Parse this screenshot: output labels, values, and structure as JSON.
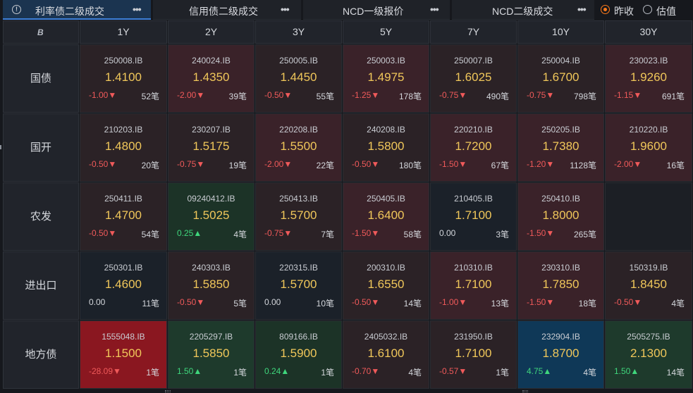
{
  "tabs": [
    {
      "label": "利率债二级成交",
      "active": true,
      "has_info": true
    },
    {
      "label": "信用债二级成交",
      "active": false
    },
    {
      "label": "NCD一级报价",
      "active": false
    },
    {
      "label": "NCD二级成交",
      "active": false
    }
  ],
  "more_glyph": "•••",
  "info_glyph": "!",
  "radio": {
    "options": [
      "昨收",
      "估值"
    ],
    "selected": "昨收"
  },
  "corner_icon": "B",
  "columns": [
    "1Y",
    "2Y",
    "3Y",
    "5Y",
    "7Y",
    "10Y",
    "30Y"
  ],
  "rows": [
    {
      "label": "国债",
      "cells": [
        {
          "code": "250008.IB",
          "price": "1.4100",
          "change": "-1.00▼",
          "dir": "down",
          "count": "52笔",
          "tone": "r1"
        },
        {
          "code": "240024.IB",
          "price": "1.4350",
          "change": "-2.00▼",
          "dir": "down",
          "count": "39笔",
          "tone": "r2"
        },
        {
          "code": "250005.IB",
          "price": "1.4450",
          "change": "-0.50▼",
          "dir": "down",
          "count": "55笔",
          "tone": "r1"
        },
        {
          "code": "250003.IB",
          "price": "1.4975",
          "change": "-1.25▼",
          "dir": "down",
          "count": "178笔",
          "tone": "r2"
        },
        {
          "code": "250007.IB",
          "price": "1.6025",
          "change": "-0.75▼",
          "dir": "down",
          "count": "490笔",
          "tone": "r1"
        },
        {
          "code": "250004.IB",
          "price": "1.6700",
          "change": "-0.75▼",
          "dir": "down",
          "count": "798笔",
          "tone": "r1"
        },
        {
          "code": "230023.IB",
          "price": "1.9260",
          "change": "-1.15▼",
          "dir": "down",
          "count": "691笔",
          "tone": "r2"
        }
      ]
    },
    {
      "label": "国开",
      "cells": [
        {
          "code": "210203.IB",
          "price": "1.4800",
          "change": "-0.50▼",
          "dir": "down",
          "count": "20笔",
          "tone": "r1"
        },
        {
          "code": "230207.IB",
          "price": "1.5175",
          "change": "-0.75▼",
          "dir": "down",
          "count": "19笔",
          "tone": "r1"
        },
        {
          "code": "220208.IB",
          "price": "1.5500",
          "change": "-2.00▼",
          "dir": "down",
          "count": "22笔",
          "tone": "r2"
        },
        {
          "code": "240208.IB",
          "price": "1.5800",
          "change": "-0.50▼",
          "dir": "down",
          "count": "180笔",
          "tone": "r1"
        },
        {
          "code": "220210.IB",
          "price": "1.7200",
          "change": "-1.50▼",
          "dir": "down",
          "count": "67笔",
          "tone": "r2"
        },
        {
          "code": "250205.IB",
          "price": "1.7380",
          "change": "-1.20▼",
          "dir": "down",
          "count": "1128笔",
          "tone": "r2"
        },
        {
          "code": "210220.IB",
          "price": "1.9600",
          "change": "-2.00▼",
          "dir": "down",
          "count": "16笔",
          "tone": "r2"
        }
      ]
    },
    {
      "label": "农发",
      "cells": [
        {
          "code": "250411.IB",
          "price": "1.4700",
          "change": "-0.50▼",
          "dir": "down",
          "count": "54笔",
          "tone": "r1"
        },
        {
          "code": "09240412.IB",
          "price": "1.5025",
          "change": "0.25▲",
          "dir": "up",
          "count": "4笔",
          "tone": "g1"
        },
        {
          "code": "250413.IB",
          "price": "1.5700",
          "change": "-0.75▼",
          "dir": "down",
          "count": "7笔",
          "tone": "r1"
        },
        {
          "code": "250405.IB",
          "price": "1.6400",
          "change": "-1.50▼",
          "dir": "down",
          "count": "58笔",
          "tone": "r2"
        },
        {
          "code": "210405.IB",
          "price": "1.7100",
          "change": "0.00",
          "dir": "flat",
          "count": "3笔",
          "tone": "n"
        },
        {
          "code": "250410.IB",
          "price": "1.8000",
          "change": "-1.50▼",
          "dir": "down",
          "count": "265笔",
          "tone": "r2"
        },
        {
          "code": "",
          "price": "",
          "change": "",
          "dir": "flat",
          "count": "",
          "tone": "e"
        }
      ]
    },
    {
      "label": "进出口",
      "cells": [
        {
          "code": "250301.IB",
          "price": "1.4600",
          "change": "0.00",
          "dir": "flat",
          "count": "11笔",
          "tone": "n"
        },
        {
          "code": "240303.IB",
          "price": "1.5850",
          "change": "-0.50▼",
          "dir": "down",
          "count": "5笔",
          "tone": "r1"
        },
        {
          "code": "220315.IB",
          "price": "1.5700",
          "change": "0.00",
          "dir": "flat",
          "count": "10笔",
          "tone": "n"
        },
        {
          "code": "200310.IB",
          "price": "1.6550",
          "change": "-0.50▼",
          "dir": "down",
          "count": "14笔",
          "tone": "r1"
        },
        {
          "code": "210310.IB",
          "price": "1.7100",
          "change": "-1.00▼",
          "dir": "down",
          "count": "13笔",
          "tone": "r2"
        },
        {
          "code": "230310.IB",
          "price": "1.7850",
          "change": "-1.50▼",
          "dir": "down",
          "count": "18笔",
          "tone": "r2"
        },
        {
          "code": "150319.IB",
          "price": "1.8450",
          "change": "-0.50▼",
          "dir": "down",
          "count": "4笔",
          "tone": "r1"
        }
      ]
    },
    {
      "label": "地方债",
      "cells": [
        {
          "code": "1555048.IB",
          "price": "1.1500",
          "change": "-28.09▼",
          "dir": "down",
          "count": "1笔",
          "tone": "r4"
        },
        {
          "code": "2205297.IB",
          "price": "1.5850",
          "change": "1.50▲",
          "dir": "up",
          "count": "1笔",
          "tone": "g2"
        },
        {
          "code": "809166.IB",
          "price": "1.5900",
          "change": "0.24▲",
          "dir": "up",
          "count": "1笔",
          "tone": "g1"
        },
        {
          "code": "2405032.IB",
          "price": "1.6100",
          "change": "-0.70▼",
          "dir": "down",
          "count": "4笔",
          "tone": "r1"
        },
        {
          "code": "231950.IB",
          "price": "1.7100",
          "change": "-0.57▼",
          "dir": "down",
          "count": "1笔",
          "tone": "r1"
        },
        {
          "code": "232904.IB",
          "price": "1.8700",
          "change": "4.75▲",
          "dir": "up",
          "count": "4笔",
          "tone": "b"
        },
        {
          "code": "2505275.IB",
          "price": "2.1300",
          "change": "1.50▲",
          "dir": "up",
          "count": "14笔",
          "tone": "g2"
        }
      ]
    }
  ],
  "colors": {
    "up": "#3fd67c",
    "down": "#f05a5a",
    "price": "#f0c75a",
    "accent": "#ff7a1a",
    "active_tab": "#1b3450"
  }
}
